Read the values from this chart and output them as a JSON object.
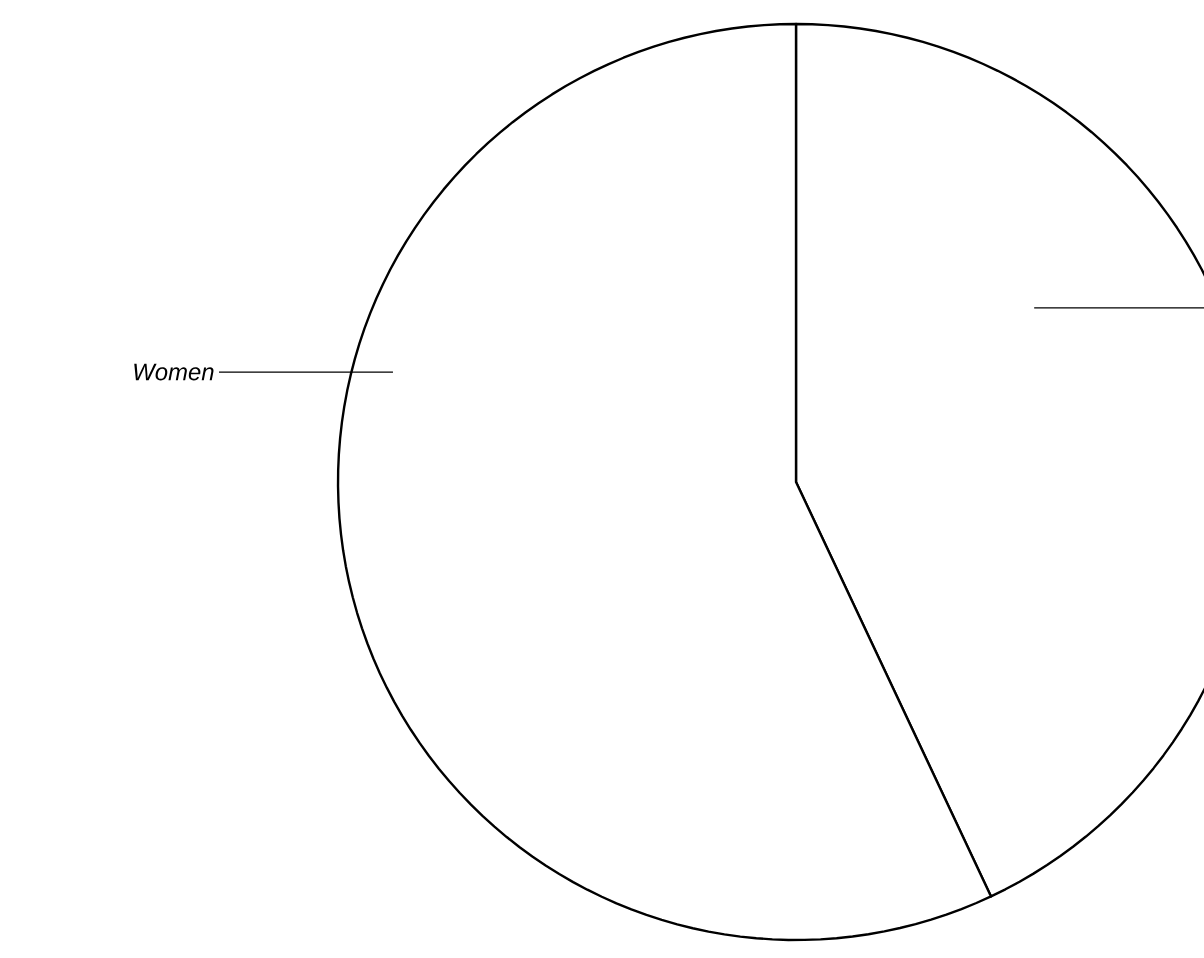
{
  "chart_data": {
    "type": "pie",
    "categories": [
      null,
      "Women"
    ],
    "values": [
      43,
      57
    ],
    "colors": [
      "#ffffff",
      "#ffffff"
    ]
  }
}
